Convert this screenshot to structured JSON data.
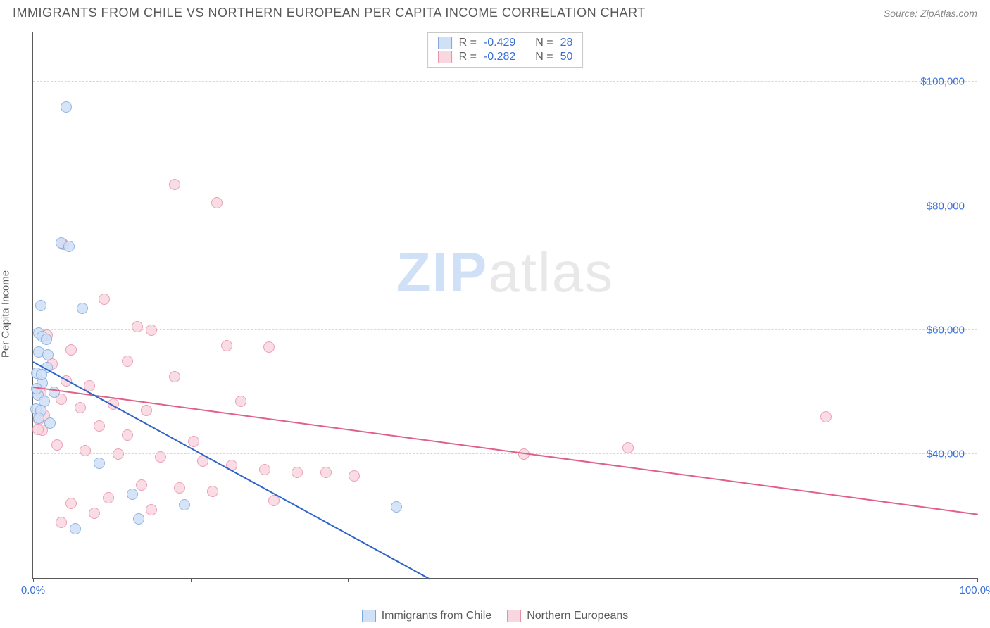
{
  "title": "IMMIGRANTS FROM CHILE VS NORTHERN EUROPEAN PER CAPITA INCOME CORRELATION CHART",
  "source_label": "Source:",
  "source_name": "ZipAtlas.com",
  "watermark": {
    "prefix": "ZIP",
    "suffix": "atlas"
  },
  "chart": {
    "type": "scatter",
    "ylabel": "Per Capita Income",
    "xlim": [
      0,
      100
    ],
    "ylim": [
      20000,
      108000
    ],
    "yticks": [
      40000,
      60000,
      80000,
      100000
    ],
    "ytick_labels": [
      "$40,000",
      "$60,000",
      "$80,000",
      "$100,000"
    ],
    "xtick_positions": [
      0,
      16.7,
      33.3,
      50,
      66.7,
      83.3,
      100
    ],
    "xaxis_labels": {
      "left": "0.0%",
      "right": "100.0%"
    },
    "grid_color": "#d8d8d8",
    "bg_color": "#ffffff",
    "marker_radius": 8,
    "marker_stroke_width": 1.5,
    "series": [
      {
        "name": "Immigrants from Chile",
        "fill": "#cfe0f7",
        "stroke": "#7fa8e0",
        "line_color": "#2e63c9",
        "R": "-0.429",
        "N": "28",
        "trend": {
          "x1": 0,
          "y1": 55000,
          "x2": 42,
          "y2": 20000
        },
        "points": [
          [
            3.5,
            96000
          ],
          [
            3.0,
            74000
          ],
          [
            3.8,
            73500
          ],
          [
            0.8,
            64000
          ],
          [
            5.2,
            63500
          ],
          [
            0.6,
            59500
          ],
          [
            1.0,
            59000
          ],
          [
            1.4,
            58500
          ],
          [
            0.6,
            56500
          ],
          [
            1.5,
            54000
          ],
          [
            0.4,
            53000
          ],
          [
            1.0,
            51500
          ],
          [
            0.5,
            49500
          ],
          [
            1.2,
            48500
          ],
          [
            0.3,
            47200
          ],
          [
            0.8,
            47000
          ],
          [
            0.6,
            45800
          ],
          [
            1.8,
            45000
          ],
          [
            7.0,
            38500
          ],
          [
            10.5,
            33500
          ],
          [
            16.0,
            31800
          ],
          [
            11.2,
            29500
          ],
          [
            4.5,
            28000
          ],
          [
            38.5,
            31500
          ],
          [
            0.4,
            50500
          ],
          [
            2.2,
            50000
          ],
          [
            0.9,
            52800
          ],
          [
            1.6,
            56000
          ]
        ]
      },
      {
        "name": "Northern Europeans",
        "fill": "#f9d7e0",
        "stroke": "#e890aa",
        "line_color": "#e06088",
        "R": "-0.282",
        "N": "50",
        "trend": {
          "x1": 0,
          "y1": 51000,
          "x2": 100,
          "y2": 30500
        },
        "points": [
          [
            15.0,
            83500
          ],
          [
            19.5,
            80500
          ],
          [
            3.2,
            73800
          ],
          [
            7.5,
            65000
          ],
          [
            11.0,
            60500
          ],
          [
            12.5,
            60000
          ],
          [
            1.5,
            59200
          ],
          [
            4.0,
            56800
          ],
          [
            20.5,
            57500
          ],
          [
            25.0,
            57200
          ],
          [
            10.0,
            55000
          ],
          [
            15.0,
            52500
          ],
          [
            3.5,
            51800
          ],
          [
            6.0,
            51000
          ],
          [
            0.8,
            49800
          ],
          [
            3.0,
            48800
          ],
          [
            8.5,
            48000
          ],
          [
            5.0,
            47500
          ],
          [
            1.2,
            46200
          ],
          [
            12.0,
            47000
          ],
          [
            0.6,
            45500
          ],
          [
            7.0,
            44500
          ],
          [
            1.0,
            43800
          ],
          [
            22.0,
            48500
          ],
          [
            84.0,
            46000
          ],
          [
            63.0,
            41000
          ],
          [
            52.0,
            40000
          ],
          [
            2.5,
            41500
          ],
          [
            5.5,
            40500
          ],
          [
            9.0,
            40000
          ],
          [
            13.5,
            39500
          ],
          [
            18.0,
            38800
          ],
          [
            21.0,
            38200
          ],
          [
            24.5,
            37500
          ],
          [
            28.0,
            37000
          ],
          [
            31.0,
            37000
          ],
          [
            34.0,
            36500
          ],
          [
            11.5,
            35000
          ],
          [
            15.5,
            34500
          ],
          [
            19.0,
            34000
          ],
          [
            8.0,
            33000
          ],
          [
            25.5,
            32500
          ],
          [
            4.0,
            32000
          ],
          [
            12.5,
            31000
          ],
          [
            6.5,
            30500
          ],
          [
            3.0,
            29000
          ],
          [
            10.0,
            43000
          ],
          [
            17.0,
            42000
          ],
          [
            0.5,
            44000
          ],
          [
            2.0,
            54500
          ]
        ]
      }
    ],
    "stats_legend_labels": {
      "R": "R =",
      "N": "N ="
    }
  }
}
